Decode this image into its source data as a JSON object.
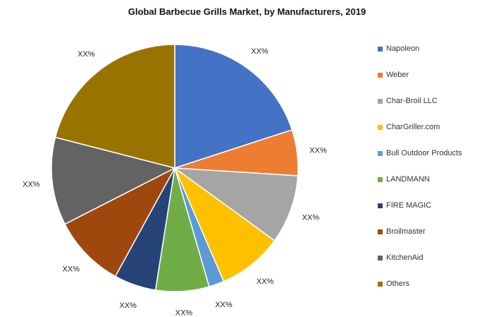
{
  "chart_data": {
    "type": "pie",
    "title": "Global Barbecue Grills Market, by Manufacturers, 2019",
    "categories": [
      "Napoleon",
      "Weber",
      "Char-Broil LLC",
      "CharGriller.com",
      "Bull Outdoor Products",
      "LANDMANN",
      "FIRE MAGIC",
      "Broilmaster",
      "KitchenAid",
      "Others"
    ],
    "values": [
      20,
      6,
      9,
      8.5,
      2,
      7,
      5.5,
      9.5,
      11.5,
      21
    ],
    "data_labels": [
      "XX%",
      "XX%",
      "XX%",
      "XX%",
      "XX%",
      "XX%",
      "XX%",
      "XX%",
      "XX%",
      "XX%"
    ],
    "colors": [
      "#4472C4",
      "#ED7D31",
      "#A5A5A5",
      "#FFC000",
      "#5B9BD5",
      "#70AD47",
      "#264478",
      "#9E480E",
      "#636363",
      "#997300"
    ],
    "legend_position": "right",
    "start_angle": "12 o'clock, clockwise"
  }
}
